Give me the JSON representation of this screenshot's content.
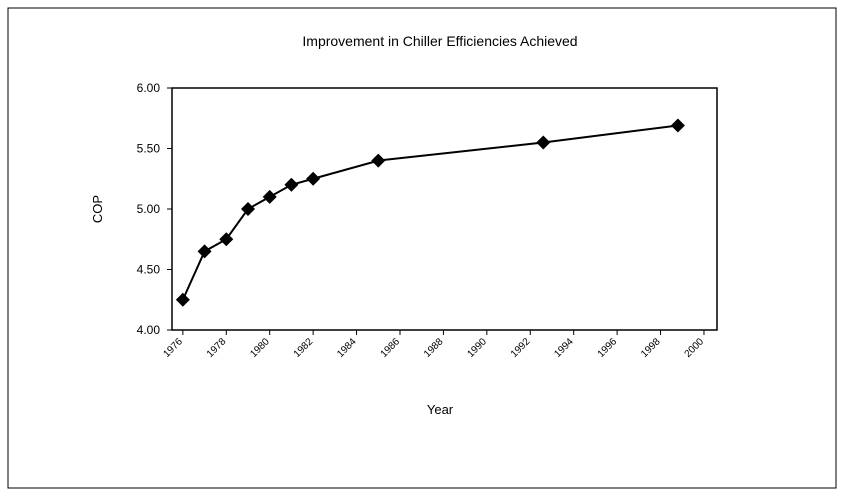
{
  "chart_data": {
    "type": "line",
    "title": "Improvement in Chiller Efficiencies Achieved",
    "x_label": "Year",
    "y_label": "COP",
    "x": [
      1976,
      1977,
      1978,
      1979,
      1980,
      1981,
      1982,
      1985,
      1992.6,
      1998.8
    ],
    "series": [
      {
        "name": "COP",
        "color": "#000000",
        "values": [
          4.25,
          4.65,
          4.75,
          5.0,
          5.1,
          5.2,
          5.25,
          5.4,
          5.55,
          5.69
        ]
      }
    ],
    "xlim": [
      1975.5,
      2000.6
    ],
    "xticks": [
      1976,
      1978,
      1980,
      1982,
      1984,
      1986,
      1988,
      1990,
      1992,
      1994,
      1996,
      1998,
      2000
    ],
    "ylim": [
      4,
      6
    ],
    "yticks": [
      {
        "value": 4,
        "label": "4.00"
      },
      {
        "value": 4.5,
        "label": "4.50"
      },
      {
        "value": 5,
        "label": "5.00"
      },
      {
        "value": 5.5,
        "label": "5.50"
      },
      {
        "value": 6,
        "label": "6.00"
      }
    ],
    "grid": false
  }
}
